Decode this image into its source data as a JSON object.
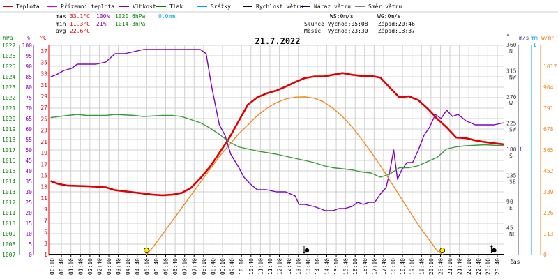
{
  "legend": [
    {
      "label": "Teplota",
      "color": "#e00000"
    },
    {
      "label": "Přízemní teplota",
      "color": "#e000e0"
    },
    {
      "label": "Vlhkost",
      "color": "#8000c0"
    },
    {
      "label": "Tlak",
      "color": "#008000"
    },
    {
      "label": "Srážky",
      "color": "#00a0e0"
    },
    {
      "label": "Rychlost větru",
      "color": "#000000"
    },
    {
      "label": "Náraz větru",
      "color": "#000080"
    },
    {
      "label": "Směr větru",
      "color": "#808080"
    }
  ],
  "stats": {
    "max_label": "max",
    "max_temp": "33.1°C",
    "max_hum": "100%",
    "max_press": "1020.6hPa",
    "rain": "0.0mm",
    "min_label": "min",
    "min_temp": "11.3°C",
    "min_hum": "21%",
    "min_press": "1014.3hPa",
    "avg_label": "avg",
    "avg_temp": "22.6°C",
    "ws": "WS:0m/s",
    "wg": "WG:0m/s",
    "sun": "Slunce Východ:05:08   Západ:20:46",
    "moon": "Měsíc  Východ:23:30   Západ:13:37"
  },
  "axis_units": {
    "hpa": "hPa",
    "pct": "%",
    "degc": "°C",
    "deg": "°",
    "ms": "m/s",
    "mm": "mm",
    "wm2": "W/m²",
    "time": "čas"
  },
  "axis_ticks": {
    "hpa": [
      "1027",
      "1026",
      "1025",
      "1024",
      "1023",
      "1022",
      "1021",
      "1020",
      "1019",
      "1018",
      "1017",
      "1016",
      "1015",
      "1014",
      "1013",
      "1012",
      "1011",
      "1010",
      "1009",
      "1008",
      "1007"
    ],
    "pct": [
      "100",
      "95",
      "90",
      "85",
      "80",
      "75",
      "70",
      "65",
      "60",
      "55",
      "50",
      "45",
      "40",
      "35",
      "30",
      "25",
      "20",
      "15",
      "10",
      "5",
      "0"
    ],
    "degc": [
      "37",
      "35",
      "33",
      "31",
      "29",
      "27",
      "25",
      "23",
      "21",
      "19",
      "17",
      "15",
      "13",
      "11",
      "9",
      "7",
      "5",
      "3",
      "1"
    ],
    "wind_dir": [
      {
        "deg": "360",
        "name": "N"
      },
      {
        "deg": "315",
        "name": "NW"
      },
      {
        "deg": "270",
        "name": "W"
      },
      {
        "deg": "225",
        "name": "SW"
      },
      {
        "deg": "180",
        "name": "S"
      },
      {
        "deg": "135",
        "name": "SE"
      },
      {
        "deg": "90",
        "name": "E"
      },
      {
        "deg": "45",
        "name": "NE"
      }
    ],
    "ms": [
      "1"
    ],
    "mm": [
      "1"
    ],
    "wm2": [
      "1017",
      "904",
      "791",
      "678",
      "565",
      "452",
      "339",
      "226",
      "113",
      "0"
    ],
    "time": [
      "00:10",
      "00:40",
      "01:10",
      "01:40",
      "02:10",
      "02:40",
      "03:10",
      "03:40",
      "04:10",
      "04:40",
      "05:10",
      "05:40",
      "06:10",
      "06:40",
      "07:10",
      "07:40",
      "08:10",
      "08:40",
      "09:10",
      "09:40",
      "10:10",
      "10:40",
      "11:10",
      "11:40",
      "12:10",
      "12:40",
      "13:10",
      "13:40",
      "14:10",
      "14:40",
      "15:10",
      "15:40",
      "16:10",
      "16:40",
      "17:10",
      "17:40",
      "18:10",
      "18:40",
      "19:10",
      "19:40",
      "20:10",
      "20:40",
      "21:10",
      "21:40",
      "22:10",
      "22:40",
      "23:10",
      "23:40"
    ]
  },
  "colors": {
    "background": "#ffffff",
    "grid": "#d0d0d0",
    "axis": "#000000",
    "temp": "#e00000",
    "humidity": "#8000c0",
    "pressure": "#3a9a3a",
    "solar": "#f08a1e",
    "rain_axis": "#00a0e0",
    "wind_axis": "#4040a0",
    "sun_marker": "#ffee00"
  },
  "chart_data": {
    "type": "line",
    "title": "21.7.2022",
    "x_unit": "hour of day",
    "x_range": [
      0,
      24
    ],
    "grid": true,
    "series": [
      {
        "name": "Teplota",
        "unit": "°C",
        "axis": "degc",
        "range": [
          1,
          38
        ],
        "points": [
          [
            0.1,
            14.0
          ],
          [
            0.5,
            13.5
          ],
          [
            1,
            13.2
          ],
          [
            2,
            13.1
          ],
          [
            3,
            12.9
          ],
          [
            3.5,
            12.4
          ],
          [
            4,
            12.2
          ],
          [
            5,
            11.8
          ],
          [
            5.5,
            11.6
          ],
          [
            6,
            11.5
          ],
          [
            6.5,
            11.6
          ],
          [
            7,
            11.9
          ],
          [
            7.5,
            12.8
          ],
          [
            8,
            14.5
          ],
          [
            8.5,
            16.5
          ],
          [
            9,
            19
          ],
          [
            9.5,
            21.5
          ],
          [
            10,
            24.5
          ],
          [
            10.5,
            27.5
          ],
          [
            11,
            28.8
          ],
          [
            11.5,
            29.5
          ],
          [
            12,
            30
          ],
          [
            12.5,
            30.7
          ],
          [
            13,
            31.5
          ],
          [
            13.5,
            32.2
          ],
          [
            14,
            32.5
          ],
          [
            14.5,
            32.5
          ],
          [
            15,
            32.8
          ],
          [
            15.5,
            33.1
          ],
          [
            16,
            32.8
          ],
          [
            16.5,
            32.6
          ],
          [
            17,
            32.6
          ],
          [
            17.5,
            32.3
          ],
          [
            18,
            30.5
          ],
          [
            18.5,
            28.8
          ],
          [
            19,
            29
          ],
          [
            19.5,
            28.3
          ],
          [
            20,
            26.8
          ],
          [
            20.5,
            25
          ],
          [
            21,
            23.5
          ],
          [
            21.5,
            21.7
          ],
          [
            22,
            21.6
          ],
          [
            22.5,
            21.2
          ],
          [
            23,
            20.9
          ],
          [
            23.5,
            20.7
          ],
          [
            24,
            20.5
          ]
        ]
      },
      {
        "name": "Vlhkost",
        "unit": "%",
        "axis": "pct",
        "range": [
          0,
          100
        ],
        "points": [
          [
            0.1,
            85
          ],
          [
            0.4,
            86
          ],
          [
            0.8,
            88
          ],
          [
            1.2,
            89
          ],
          [
            1.5,
            91
          ],
          [
            2.5,
            91
          ],
          [
            3,
            92
          ],
          [
            3.5,
            96
          ],
          [
            4,
            96
          ],
          [
            4.5,
            97
          ],
          [
            5,
            98
          ],
          [
            8,
            98
          ],
          [
            8.3,
            96
          ],
          [
            8.6,
            80
          ],
          [
            9,
            62
          ],
          [
            9.3,
            57
          ],
          [
            9.6,
            48
          ],
          [
            10,
            42
          ],
          [
            10.3,
            37
          ],
          [
            10.6,
            34
          ],
          [
            11,
            31
          ],
          [
            11.5,
            31
          ],
          [
            12,
            30
          ],
          [
            12.5,
            30
          ],
          [
            13,
            28
          ],
          [
            13.2,
            24
          ],
          [
            13.5,
            24
          ],
          [
            14,
            23
          ],
          [
            14.3,
            22
          ],
          [
            14.6,
            21
          ],
          [
            15,
            21
          ],
          [
            15.3,
            22
          ],
          [
            15.6,
            22
          ],
          [
            16,
            23
          ],
          [
            16.3,
            25
          ],
          [
            16.6,
            24
          ],
          [
            16.9,
            25
          ],
          [
            17.2,
            25
          ],
          [
            17.5,
            29
          ],
          [
            17.8,
            32
          ],
          [
            18,
            40
          ],
          [
            18.2,
            50
          ],
          [
            18.4,
            36
          ],
          [
            18.6,
            40
          ],
          [
            18.9,
            44
          ],
          [
            19.2,
            44
          ],
          [
            19.5,
            50
          ],
          [
            19.8,
            57
          ],
          [
            20.1,
            61
          ],
          [
            20.4,
            67
          ],
          [
            20.7,
            65
          ],
          [
            21,
            69
          ],
          [
            21.3,
            66
          ],
          [
            21.6,
            67
          ],
          [
            22,
            64
          ],
          [
            22.5,
            62
          ],
          [
            23,
            62
          ],
          [
            23.5,
            62
          ],
          [
            24,
            63
          ]
        ]
      },
      {
        "name": "Tlak",
        "unit": "hPa",
        "axis": "hpa",
        "range": [
          1007,
          1027
        ],
        "points": [
          [
            0.1,
            1020.1
          ],
          [
            1,
            1020.3
          ],
          [
            1.5,
            1020.4
          ],
          [
            2,
            1020.3
          ],
          [
            3,
            1020.3
          ],
          [
            3.5,
            1020.4
          ],
          [
            4.5,
            1020.3
          ],
          [
            5,
            1020.2
          ],
          [
            6,
            1020.3
          ],
          [
            6.5,
            1020.3
          ],
          [
            7,
            1020.2
          ],
          [
            7.5,
            1019.9
          ],
          [
            8,
            1019.6
          ],
          [
            8.5,
            1019.1
          ],
          [
            9,
            1018.5
          ],
          [
            9.5,
            1017.8
          ],
          [
            10,
            1017.3
          ],
          [
            10.5,
            1017.1
          ],
          [
            11,
            1016.9
          ],
          [
            12,
            1016.6
          ],
          [
            13,
            1016.2
          ],
          [
            14,
            1015.8
          ],
          [
            14.5,
            1015.5
          ],
          [
            15,
            1015.3
          ],
          [
            15.5,
            1015.2
          ],
          [
            16,
            1015.1
          ],
          [
            16.5,
            1014.9
          ],
          [
            17,
            1014.8
          ],
          [
            17.5,
            1014.4
          ],
          [
            18,
            1014.7
          ],
          [
            18.5,
            1015.3
          ],
          [
            19,
            1015.3
          ],
          [
            19.5,
            1015.5
          ],
          [
            20,
            1015.9
          ],
          [
            20.5,
            1016.3
          ],
          [
            21,
            1017.1
          ],
          [
            21.5,
            1017.3
          ],
          [
            22,
            1017.4
          ],
          [
            23,
            1017.5
          ],
          [
            24,
            1017.4
          ]
        ]
      },
      {
        "name": "Sluneční záření",
        "unit": "W/m²",
        "axis": "wm2",
        "range": [
          0,
          1017
        ],
        "points": [
          [
            5.15,
            0
          ],
          [
            5.5,
            40
          ],
          [
            6,
            110
          ],
          [
            6.5,
            180
          ],
          [
            7,
            250
          ],
          [
            7.5,
            320
          ],
          [
            8,
            390
          ],
          [
            8.5,
            460
          ],
          [
            9,
            530
          ],
          [
            9.5,
            590
          ],
          [
            10,
            650
          ],
          [
            10.5,
            700
          ],
          [
            11,
            750
          ],
          [
            11.5,
            790
          ],
          [
            12,
            820
          ],
          [
            12.5,
            840
          ],
          [
            13,
            850
          ],
          [
            13.5,
            852
          ],
          [
            14,
            845
          ],
          [
            14.5,
            825
          ],
          [
            15,
            790
          ],
          [
            15.5,
            745
          ],
          [
            16,
            690
          ],
          [
            16.5,
            625
          ],
          [
            17,
            555
          ],
          [
            17.5,
            480
          ],
          [
            18,
            400
          ],
          [
            18.5,
            320
          ],
          [
            19,
            240
          ],
          [
            19.5,
            160
          ],
          [
            20,
            90
          ],
          [
            20.5,
            20
          ],
          [
            20.8,
            0
          ]
        ]
      }
    ],
    "markers": [
      {
        "name": "sunrise",
        "time": 5.15
      },
      {
        "name": "sunset",
        "time": 20.77
      },
      {
        "name": "moonset",
        "time": 13.62
      },
      {
        "name": "moonrise",
        "time": 23.5
      }
    ]
  }
}
